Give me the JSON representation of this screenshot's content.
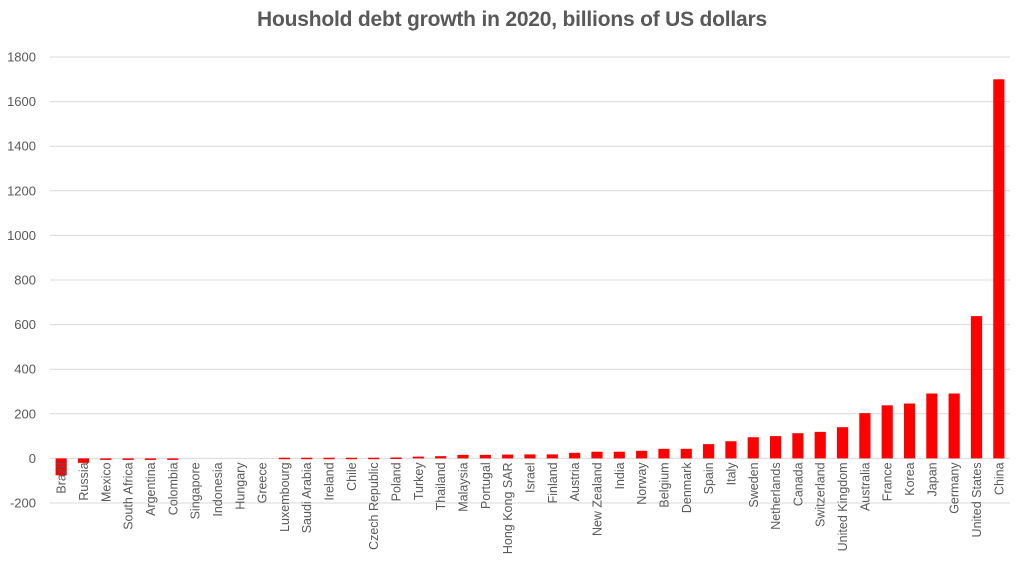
{
  "chart_data": {
    "type": "bar",
    "title": "Houshold debt growth in 2020, billions of US dollars",
    "xlabel": "",
    "ylabel": "",
    "ylim": [
      -200,
      1800
    ],
    "yticks": [
      -200,
      0,
      200,
      400,
      600,
      800,
      1000,
      1200,
      1400,
      1600,
      1800
    ],
    "grid": true,
    "legend": "none",
    "bar_color": "#ff0000",
    "categories": [
      "Brazil",
      "Russia",
      "Mexico",
      "South Africa",
      "Argentina",
      "Colombia",
      "Singapore",
      "Indonesia",
      "Hungary",
      "Greece",
      "Luxembourg",
      "Saudi Arabia",
      "Ireland",
      "Chile",
      "Czech Republic",
      "Poland",
      "Turkey",
      "Thailand",
      "Malaysia",
      "Portugal",
      "Hong Kong SAR",
      "Israel",
      "Finland",
      "Austria",
      "New Zealand",
      "India",
      "Norway",
      "Belgium",
      "Denmark",
      "Spain",
      "Italy",
      "Sweden",
      "Netherlands",
      "Canada",
      "Switzerland",
      "United Kingdom",
      "Australia",
      "France",
      "Korea",
      "Japan",
      "Germany",
      "United States",
      "China"
    ],
    "values": [
      -76,
      -20,
      -3,
      -3,
      -3,
      -3,
      0,
      0,
      0,
      0,
      3,
      3,
      3,
      3,
      3,
      4,
      8,
      10,
      16,
      16,
      17,
      18,
      18,
      25,
      30,
      30,
      34,
      43,
      43,
      64,
      77,
      95,
      100,
      113,
      119,
      140,
      203,
      238,
      246,
      291,
      291,
      638,
      1700
    ]
  }
}
